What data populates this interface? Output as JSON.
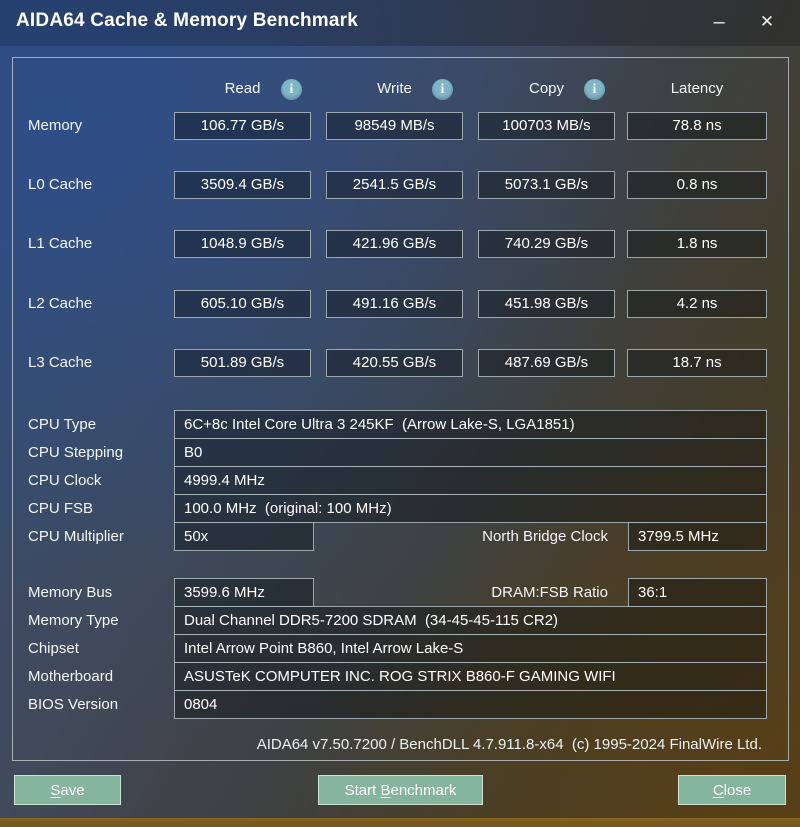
{
  "window": {
    "title": "AIDA64 Cache & Memory Benchmark",
    "minimize_glyph": "–",
    "close_glyph": "✕"
  },
  "columns": {
    "read": "Read",
    "write": "Write",
    "copy": "Copy",
    "latency": "Latency"
  },
  "icons": {
    "info_glyph": "i"
  },
  "bench": {
    "rows": [
      {
        "label": "Memory",
        "read": "106.77 GB/s",
        "write": "98549 MB/s",
        "copy": "100703 MB/s",
        "latency": "78.8 ns"
      },
      {
        "label": "L0 Cache",
        "read": "3509.4 GB/s",
        "write": "2541.5 GB/s",
        "copy": "5073.1 GB/s",
        "latency": "0.8 ns"
      },
      {
        "label": "L1 Cache",
        "read": "1048.9 GB/s",
        "write": "421.96 GB/s",
        "copy": "740.29 GB/s",
        "latency": "1.8 ns"
      },
      {
        "label": "L2 Cache",
        "read": "605.10 GB/s",
        "write": "491.16 GB/s",
        "copy": "451.98 GB/s",
        "latency": "4.2 ns"
      },
      {
        "label": "L3 Cache",
        "read": "501.89 GB/s",
        "write": "420.55 GB/s",
        "copy": "487.69 GB/s",
        "latency": "18.7 ns"
      }
    ]
  },
  "info": {
    "cpu_type": {
      "label": "CPU Type",
      "value": "6C+8c Intel Core Ultra 3 245KF  (Arrow Lake-S, LGA1851)"
    },
    "cpu_stepping": {
      "label": "CPU Stepping",
      "value": "B0"
    },
    "cpu_clock": {
      "label": "CPU Clock",
      "value": "4999.4 MHz"
    },
    "cpu_fsb": {
      "label": "CPU FSB",
      "value": "100.0 MHz  (original: 100 MHz)"
    },
    "cpu_multiplier": {
      "label": "CPU Multiplier",
      "value": "50x"
    },
    "north_bridge": {
      "label": "North Bridge Clock",
      "value": "3799.5 MHz"
    },
    "memory_bus": {
      "label": "Memory Bus",
      "value": "3599.6 MHz"
    },
    "dram_fsb": {
      "label": "DRAM:FSB Ratio",
      "value": "36:1"
    },
    "memory_type": {
      "label": "Memory Type",
      "value": "Dual Channel DDR5-7200 SDRAM  (34-45-45-115 CR2)"
    },
    "chipset": {
      "label": "Chipset",
      "value": "Intel Arrow Point B860, Intel Arrow Lake-S"
    },
    "motherboard": {
      "label": "Motherboard",
      "value": "ASUSTeK COMPUTER INC. ROG STRIX B860-F GAMING WIFI"
    },
    "bios_version": {
      "label": "BIOS Version",
      "value": "0804"
    }
  },
  "footer": "AIDA64 v7.50.7200 / BenchDLL 4.7.911.8-x64  (c) 1995-2024 FinalWire Ltd.",
  "buttons": {
    "save": {
      "pre": "",
      "accel": "S",
      "post": "ave"
    },
    "start": {
      "pre": "Start ",
      "accel": "B",
      "post": "enchmark"
    },
    "close": {
      "pre": "",
      "accel": "C",
      "post": "lose"
    }
  },
  "colors": {
    "button_bg": "#85b59c",
    "info_icon_bg": "#7fb6c7",
    "panel_border": "#c4cbcf",
    "bottom_strip": "#7b5c1e",
    "bg_top_left": "#2d4e8a",
    "bg_bottom_right": "#4f3c1e"
  }
}
